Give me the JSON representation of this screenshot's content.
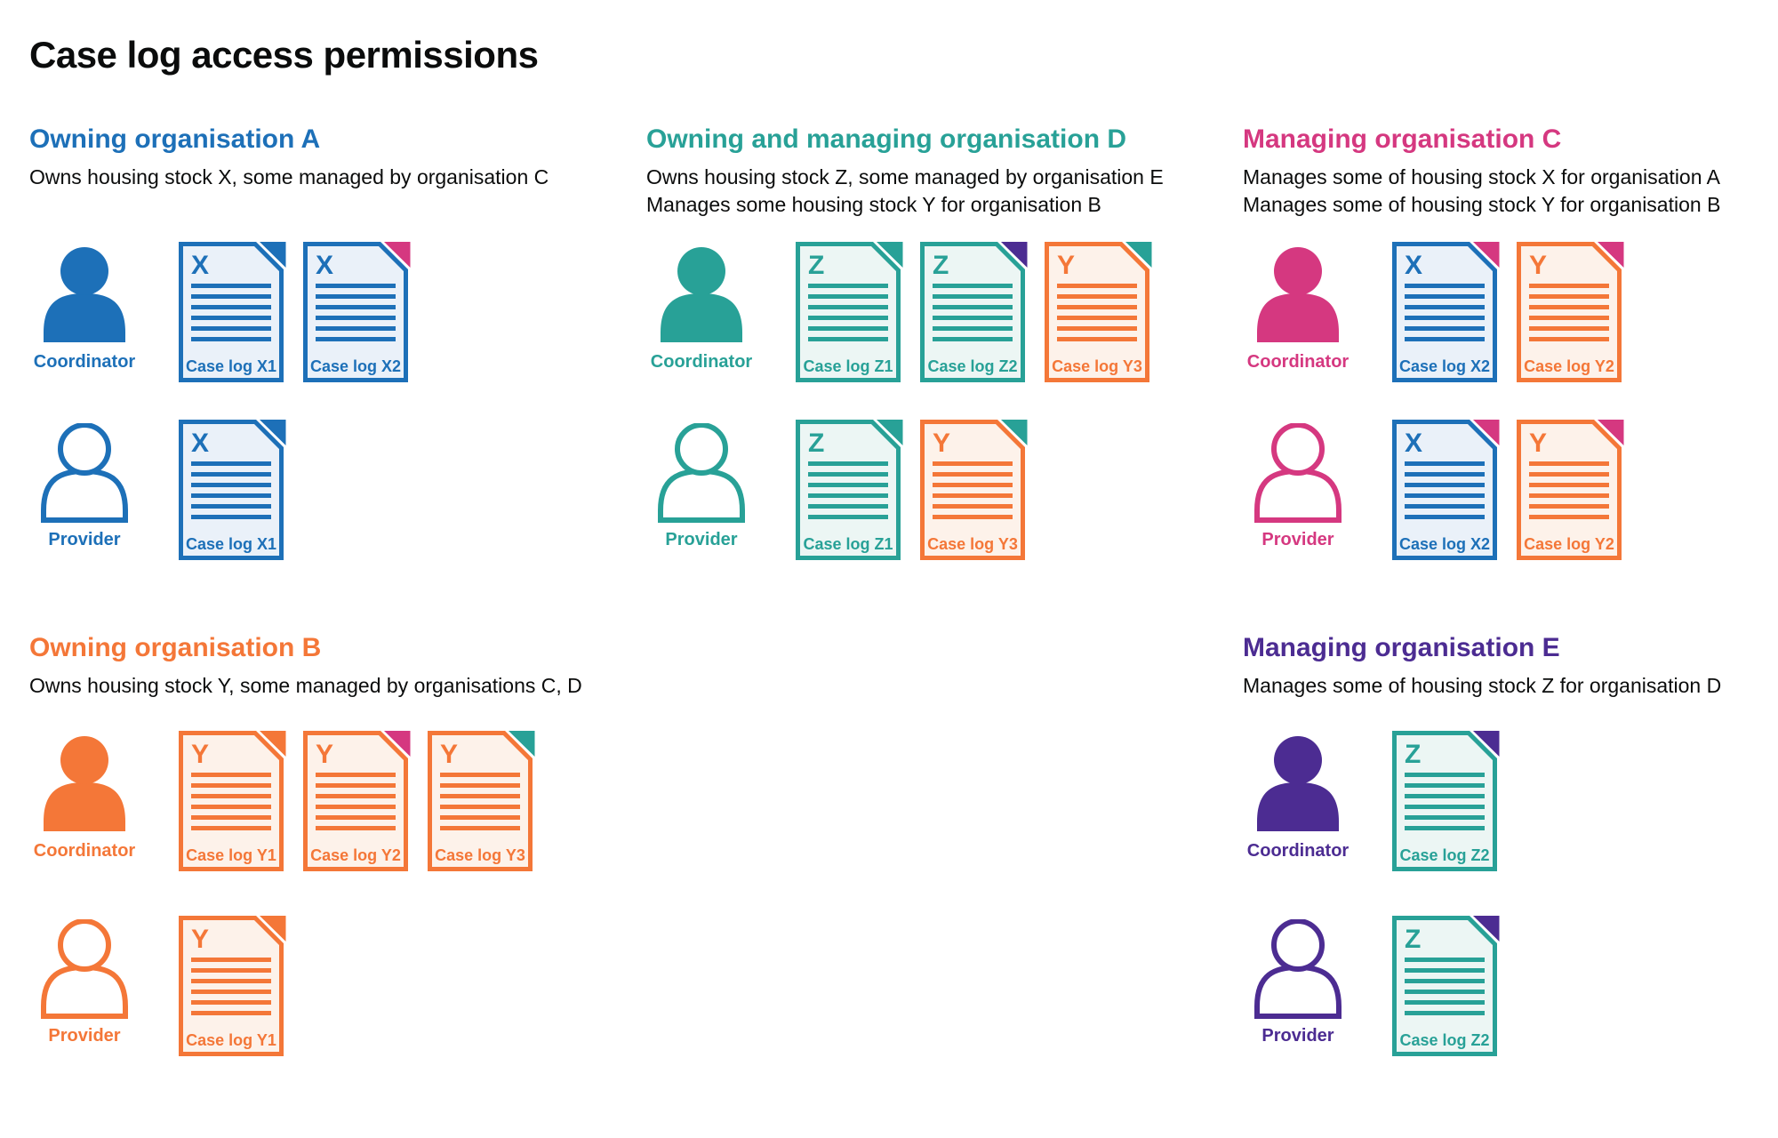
{
  "title": "Case log access permissions",
  "colors": {
    "blue": "#1d70b8",
    "teal": "#28a197",
    "orange": "#f47738",
    "pink": "#d53880",
    "purple": "#4c2c92",
    "text": "#0b0c0c",
    "blue_tint": "#eaf1f9",
    "teal_tint": "#ecf6f4",
    "orange_tint": "#fdf2ea"
  },
  "stock_colors": {
    "X": "blue",
    "Y": "orange",
    "Z": "teal"
  },
  "sections": [
    {
      "heading": "Owning organisation A",
      "color": "blue",
      "description": [
        "Owns housing stock X, some managed by organisation C"
      ],
      "rows": [
        {
          "role": "Coordinator",
          "style": "filled",
          "docs": [
            {
              "letter": "X",
              "label": "Case log X1",
              "stock": "blue",
              "fold": "blue"
            },
            {
              "letter": "X",
              "label": "Case log X2",
              "stock": "blue",
              "fold": "pink"
            }
          ]
        },
        {
          "role": "Provider",
          "style": "outline",
          "docs": [
            {
              "letter": "X",
              "label": "Case log X1",
              "stock": "blue",
              "fold": "blue"
            }
          ]
        }
      ]
    },
    {
      "heading": "Owning and managing organisation D",
      "color": "teal",
      "description": [
        "Owns housing stock Z, some managed by organisation E",
        "Manages some housing stock Y for organisation B"
      ],
      "rows": [
        {
          "role": "Coordinator",
          "style": "filled",
          "docs": [
            {
              "letter": "Z",
              "label": "Case log Z1",
              "stock": "teal",
              "fold": "teal"
            },
            {
              "letter": "Z",
              "label": "Case log Z2",
              "stock": "teal",
              "fold": "purple"
            },
            {
              "letter": "Y",
              "label": "Case log Y3",
              "stock": "orange",
              "fold": "teal"
            }
          ]
        },
        {
          "role": "Provider",
          "style": "outline",
          "docs": [
            {
              "letter": "Z",
              "label": "Case log Z1",
              "stock": "teal",
              "fold": "teal"
            },
            {
              "letter": "Y",
              "label": "Case log Y3",
              "stock": "orange",
              "fold": "teal"
            }
          ]
        }
      ]
    },
    {
      "heading": "Managing organisation C",
      "color": "pink",
      "description": [
        "Manages some of housing stock X for organisation A",
        "Manages some of housing stock Y for organisation B"
      ],
      "rows": [
        {
          "role": "Coordinator",
          "style": "filled",
          "docs": [
            {
              "letter": "X",
              "label": "Case log X2",
              "stock": "blue",
              "fold": "pink"
            },
            {
              "letter": "Y",
              "label": "Case log Y2",
              "stock": "orange",
              "fold": "pink"
            }
          ]
        },
        {
          "role": "Provider",
          "style": "outline",
          "docs": [
            {
              "letter": "X",
              "label": "Case log X2",
              "stock": "blue",
              "fold": "pink"
            },
            {
              "letter": "Y",
              "label": "Case log Y2",
              "stock": "orange",
              "fold": "pink"
            }
          ]
        }
      ]
    },
    {
      "heading": "Owning organisation B",
      "color": "orange",
      "description": [
        "Owns housing stock Y, some managed by organisations C, D"
      ],
      "rows": [
        {
          "role": "Coordinator",
          "style": "filled",
          "docs": [
            {
              "letter": "Y",
              "label": "Case log Y1",
              "stock": "orange",
              "fold": "orange"
            },
            {
              "letter": "Y",
              "label": "Case log Y2",
              "stock": "orange",
              "fold": "pink"
            },
            {
              "letter": "Y",
              "label": "Case log Y3",
              "stock": "orange",
              "fold": "teal"
            }
          ]
        },
        {
          "role": "Provider",
          "style": "outline",
          "docs": [
            {
              "letter": "Y",
              "label": "Case log Y1",
              "stock": "orange",
              "fold": "orange"
            }
          ]
        }
      ]
    },
    {
      "heading": "Managing organisation E",
      "color": "purple",
      "description": [
        "Manages some of housing stock Z for organisation D"
      ],
      "rows": [
        {
          "role": "Coordinator",
          "style": "filled",
          "docs": [
            {
              "letter": "Z",
              "label": "Case log Z2",
              "stock": "teal",
              "fold": "purple"
            }
          ]
        },
        {
          "role": "Provider",
          "style": "outline",
          "docs": [
            {
              "letter": "Z",
              "label": "Case log Z2",
              "stock": "teal",
              "fold": "purple"
            }
          ]
        }
      ]
    }
  ]
}
